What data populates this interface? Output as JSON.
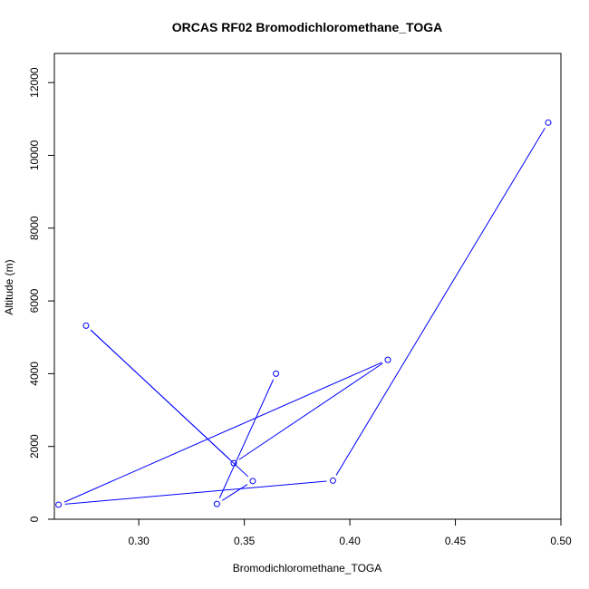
{
  "chart_data": {
    "type": "line",
    "title": "ORCAS RF02 Bromodichloromethane_TOGA",
    "xlabel": "Bromodichloromethane_TOGA",
    "ylabel": "Altitude (m)",
    "xlim": [
      0.26,
      0.5
    ],
    "ylim": [
      0,
      12800
    ],
    "xticks": [
      0.3,
      0.35,
      0.4,
      0.45,
      0.5
    ],
    "xtick_labels": [
      "0.30",
      "0.35",
      "0.40",
      "0.45",
      "0.50"
    ],
    "yticks": [
      0,
      2000,
      4000,
      6000,
      8000,
      10000,
      12000
    ],
    "ytick_labels": [
      "0",
      "2000",
      "4000",
      "6000",
      "8000",
      "10000",
      "12000"
    ],
    "grid": false,
    "legend": "none",
    "marker": "open-circle",
    "color": "#0000ff",
    "series": [
      {
        "x": [
          0.365,
          0.337,
          0.354,
          0.275,
          0.345,
          0.418,
          0.262,
          0.392,
          0.494
        ],
        "y": [
          4000,
          420,
          1050,
          5320,
          1540,
          4380,
          400,
          1060,
          10900
        ]
      }
    ]
  }
}
